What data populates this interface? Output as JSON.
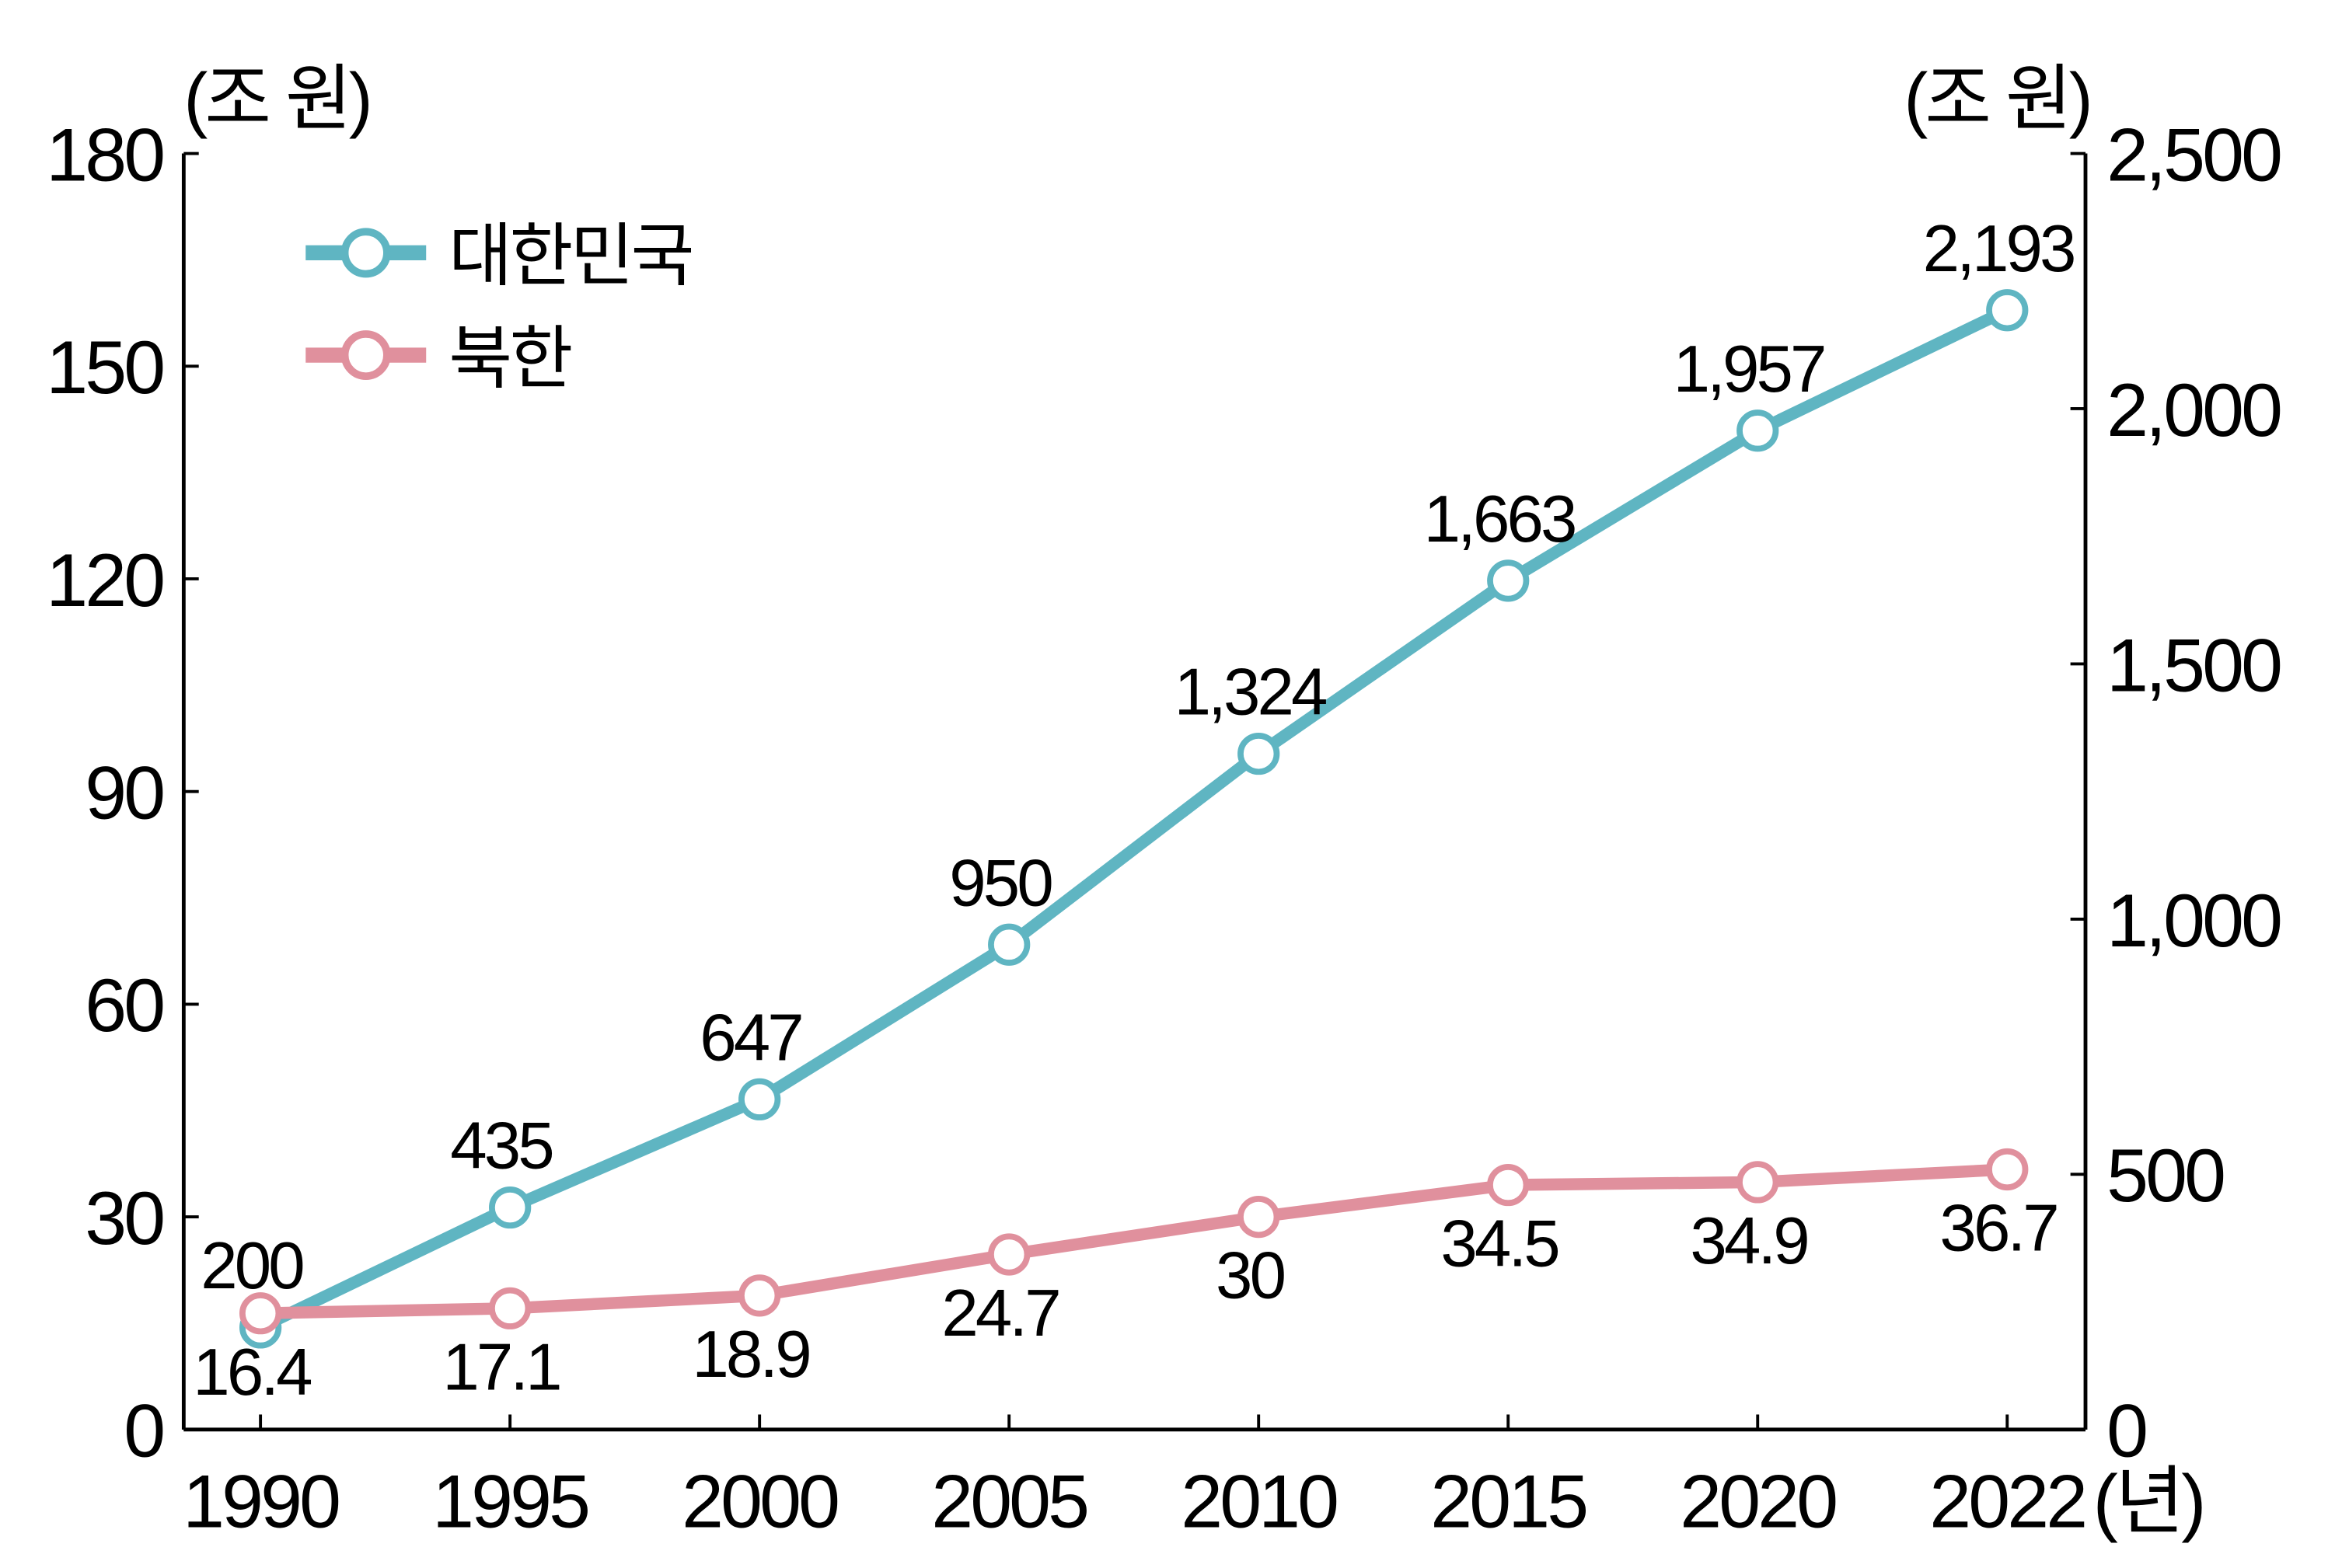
{
  "chart_data": {
    "type": "line",
    "categories": [
      "1990",
      "1995",
      "2000",
      "2005",
      "2010",
      "2015",
      "2020",
      "2022"
    ],
    "x_unit": "(년)",
    "y_left": {
      "unit": "(조 원)",
      "range": [
        0,
        180
      ],
      "ticks": [
        "0",
        "30",
        "60",
        "90",
        "120",
        "150",
        "180"
      ]
    },
    "y_right": {
      "unit": "(조 원)",
      "range": [
        0,
        2500
      ],
      "ticks": [
        "0",
        "500",
        "1,000",
        "1,500",
        "2,000",
        "2,500"
      ]
    },
    "grid": false,
    "legend_position": "top-left",
    "series": [
      {
        "name": "대한민국",
        "axis": "right",
        "color": "#5fb5c2",
        "values": [
          200,
          435,
          647,
          950,
          1324,
          1663,
          1957,
          2193
        ],
        "labels": [
          "200",
          "435",
          "647",
          "950",
          "1,324",
          "1,663",
          "1,957",
          "2,193"
        ]
      },
      {
        "name": "북한",
        "axis": "left",
        "color": "#e0909d",
        "values": [
          16.4,
          17.1,
          18.9,
          24.7,
          30,
          34.5,
          34.9,
          36.7
        ],
        "labels": [
          "16.4",
          "17.1",
          "18.9",
          "24.7",
          "30",
          "34.5",
          "34.9",
          "36.7"
        ]
      }
    ]
  }
}
